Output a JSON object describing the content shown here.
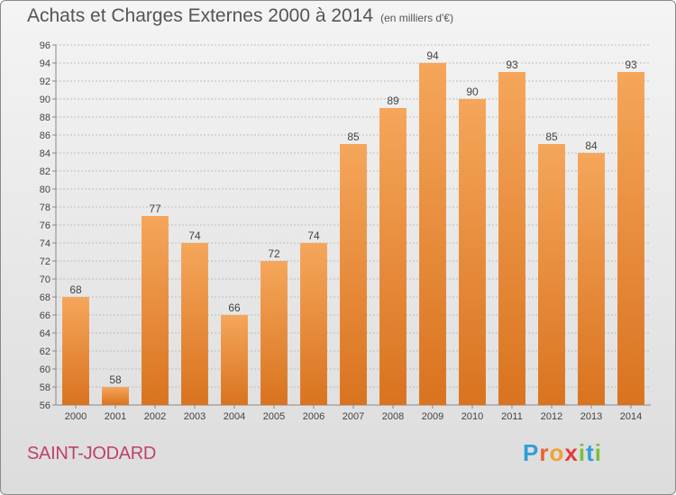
{
  "header": {
    "title": "Achats et Charges Externes 2000 à 2014",
    "unit": "(en milliers d'€)"
  },
  "footer": {
    "location": "SAINT-JODARD",
    "logo": {
      "letters": [
        "P",
        "r",
        "o",
        "x",
        "i",
        "t",
        "i"
      ],
      "colors": [
        "#2e9fd8",
        "#e8642d",
        "#f2a233",
        "#e23b3b",
        "#7bbf3a",
        "#2e9fd8",
        "#7bbf3a"
      ],
      "text": "Proxiti"
    }
  },
  "colors": {
    "bar_top": "#f5a65a",
    "bar_bottom": "#d9731f",
    "grid": "#bdbdbd"
  },
  "chart_data": {
    "type": "bar",
    "categories": [
      "2000",
      "2001",
      "2002",
      "2003",
      "2004",
      "2005",
      "2006",
      "2007",
      "2008",
      "2009",
      "2010",
      "2011",
      "2012",
      "2013",
      "2014"
    ],
    "values": [
      68,
      58,
      77,
      74,
      66,
      72,
      74,
      85,
      89,
      94,
      90,
      93,
      85,
      84,
      93
    ],
    "title": "Achats et Charges Externes 2000 à 2014",
    "xlabel": "",
    "ylabel": "",
    "ylim": [
      56,
      96
    ],
    "ytick_step": 2,
    "grid": true
  }
}
